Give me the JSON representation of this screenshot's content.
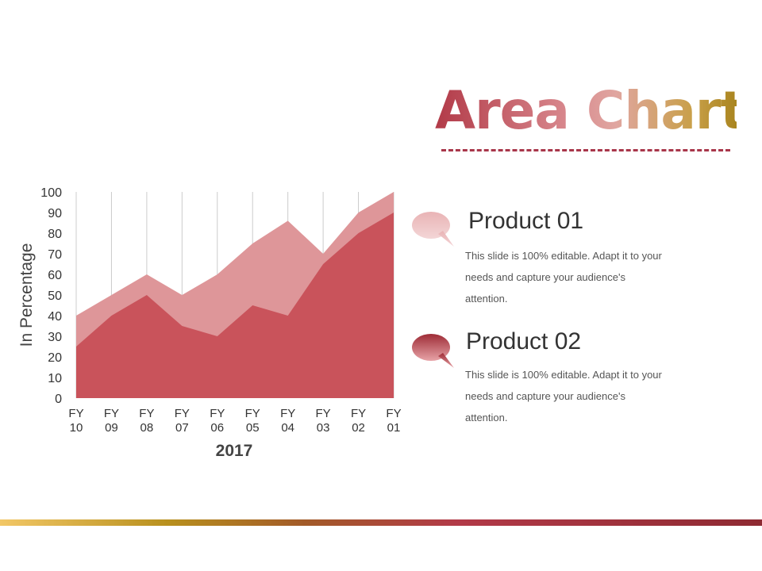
{
  "slide": {
    "title": "Area Chart"
  },
  "colors": {
    "product_01": "#de9699",
    "product_02": "#c9535b",
    "gridline": "#cccccc"
  },
  "legend": [
    {
      "name": "Product 01",
      "icon": "speech-bubble-icon",
      "description": "This slide is 100% editable. Adapt it to your needs and capture your audience's attention."
    },
    {
      "name": "Product 02",
      "icon": "speech-bubble-icon",
      "description": "This slide is 100% editable. Adapt it to your needs and capture your audience's attention."
    }
  ],
  "chart_data": {
    "type": "area",
    "categories": [
      "FY 10",
      "FY 09",
      "FY 08",
      "FY 07",
      "FY 06",
      "FY 05",
      "FY 04",
      "FY 03",
      "FY 02",
      "FY 01"
    ],
    "category_lines": [
      [
        "FY",
        "10"
      ],
      [
        "FY",
        "09"
      ],
      [
        "FY",
        "08"
      ],
      [
        "FY",
        "07"
      ],
      [
        "FY",
        "06"
      ],
      [
        "FY",
        "05"
      ],
      [
        "FY",
        "04"
      ],
      [
        "FY",
        "03"
      ],
      [
        "FY",
        "02"
      ],
      [
        "FY",
        "01"
      ]
    ],
    "series": [
      {
        "name": "Product 01",
        "values": [
          40,
          50,
          60,
          50,
          60,
          75,
          86,
          70,
          90,
          100
        ]
      },
      {
        "name": "Product 02",
        "values": [
          25,
          40,
          50,
          35,
          30,
          45,
          40,
          65,
          80,
          90
        ]
      }
    ],
    "xlabel": "2017",
    "ylabel": "In Percentage",
    "ylim": [
      0,
      100
    ],
    "yticks": [
      0,
      10,
      20,
      30,
      40,
      50,
      60,
      70,
      80,
      90,
      100
    ],
    "grid": "vertical"
  }
}
